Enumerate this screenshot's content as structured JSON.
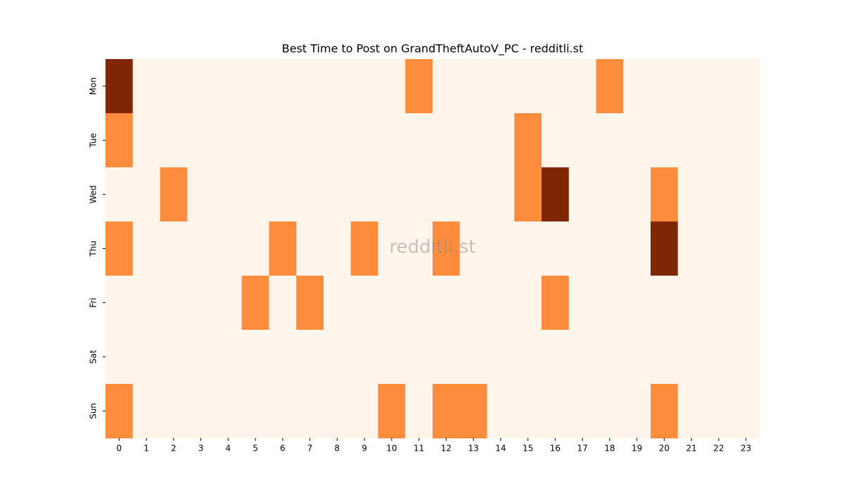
{
  "chart_data": {
    "type": "heatmap",
    "title": "Best Time to Post on GrandTheftAutoV_PC - redditli.st",
    "watermark": "redditli.st",
    "x": [
      "0",
      "1",
      "2",
      "3",
      "4",
      "5",
      "6",
      "7",
      "8",
      "9",
      "10",
      "11",
      "12",
      "13",
      "14",
      "15",
      "16",
      "17",
      "18",
      "19",
      "20",
      "21",
      "22",
      "23"
    ],
    "categories": [
      "Mon",
      "Tue",
      "Wed",
      "Thu",
      "Fri",
      "Sat",
      "Sun"
    ],
    "values": [
      [
        2,
        0,
        0,
        0,
        0,
        0,
        0,
        0,
        0,
        0,
        0,
        1,
        0,
        0,
        0,
        0,
        0,
        0,
        1,
        0,
        0,
        0,
        0,
        0
      ],
      [
        1,
        0,
        0,
        0,
        0,
        0,
        0,
        0,
        0,
        0,
        0,
        0,
        0,
        0,
        0,
        1,
        0,
        0,
        0,
        0,
        0,
        0,
        0,
        0
      ],
      [
        0,
        0,
        1,
        0,
        0,
        0,
        0,
        0,
        0,
        0,
        0,
        0,
        0,
        0,
        0,
        1,
        2,
        0,
        0,
        0,
        1,
        0,
        0,
        0
      ],
      [
        1,
        0,
        0,
        0,
        0,
        0,
        1,
        0,
        0,
        1,
        0,
        0,
        1,
        0,
        0,
        0,
        0,
        0,
        0,
        0,
        2,
        0,
        0,
        0
      ],
      [
        0,
        0,
        0,
        0,
        0,
        1,
        0,
        1,
        0,
        0,
        0,
        0,
        0,
        0,
        0,
        0,
        1,
        0,
        0,
        0,
        0,
        0,
        0,
        0
      ],
      [
        0,
        0,
        0,
        0,
        0,
        0,
        0,
        0,
        0,
        0,
        0,
        0,
        0,
        0,
        0,
        0,
        0,
        0,
        0,
        0,
        0,
        0,
        0,
        0
      ],
      [
        1,
        0,
        0,
        0,
        0,
        0,
        0,
        0,
        0,
        0,
        1,
        0,
        1,
        1,
        0,
        0,
        0,
        0,
        0,
        0,
        1,
        0,
        0,
        0
      ]
    ],
    "colorscale": [
      "#fff5eb",
      "#fd8d3c",
      "#7f2704"
    ]
  }
}
